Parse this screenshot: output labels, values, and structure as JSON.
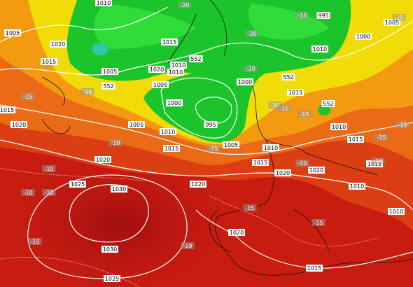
{
  "isobar_labels": [
    "1010",
    "1005",
    "1020",
    "1015",
    "1005",
    "1015",
    "1020",
    "1010",
    "1010",
    "1005",
    "1000",
    "1005",
    "1010",
    "995",
    "1000",
    "1015",
    "995",
    "1010",
    "1000",
    "1005",
    "1015",
    "1005",
    "1010",
    "1015",
    "1020",
    "1020",
    "1020",
    "1010",
    "1015",
    "1015",
    "1010",
    "1010",
    "1015",
    "1020",
    "1020",
    "1025",
    "1030",
    "1030",
    "1020",
    "1015",
    "1025"
  ],
  "thickness_labels": [
    "552",
    "552",
    "552",
    "552"
  ],
  "temperature_labels": [
    "-20",
    "-15",
    "-20",
    "-15",
    "-15",
    "-15",
    "-20",
    "-20",
    "-15",
    "-15",
    "-15",
    "-15",
    "-10",
    "-15",
    "-10",
    "-10",
    "-10",
    "-10",
    "-10",
    "-15",
    "-15",
    "-10",
    "-15"
  ]
}
